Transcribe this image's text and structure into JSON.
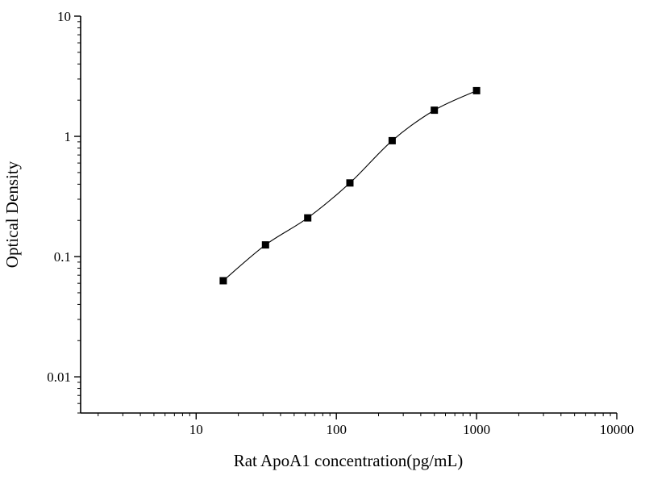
{
  "figure": {
    "background_color": "#ffffff",
    "axis_color": "#000000",
    "curve_color": "#000000",
    "marker_color": "#000000"
  },
  "chart_data": {
    "type": "scatter",
    "title": "",
    "xlabel": "Rat ApoA1 concentration(pg/mL)",
    "ylabel": "Optical Density",
    "x_scale": "log",
    "y_scale": "log",
    "xlim": [
      1.5,
      10000
    ],
    "ylim": [
      0.005,
      10
    ],
    "grid": false,
    "legend": null,
    "x_ticks": [
      {
        "value": 10,
        "label": "10"
      },
      {
        "value": 100,
        "label": "100"
      },
      {
        "value": 1000,
        "label": "1000"
      },
      {
        "value": 10000,
        "label": "10000"
      }
    ],
    "y_ticks": [
      {
        "value": 0.01,
        "label": "0.01"
      },
      {
        "value": 0.1,
        "label": "0.1"
      },
      {
        "value": 1,
        "label": "1"
      },
      {
        "value": 10,
        "label": "10"
      }
    ],
    "series": [
      {
        "name": "standard points",
        "marker": "square",
        "color": "#000000",
        "x": [
          15.6,
          31.25,
          62.5,
          125,
          250,
          500,
          1000
        ],
        "y": [
          0.063,
          0.125,
          0.21,
          0.41,
          0.92,
          1.65,
          2.4
        ]
      },
      {
        "name": "fitted standard curve",
        "type": "line",
        "color": "#000000"
      }
    ]
  }
}
